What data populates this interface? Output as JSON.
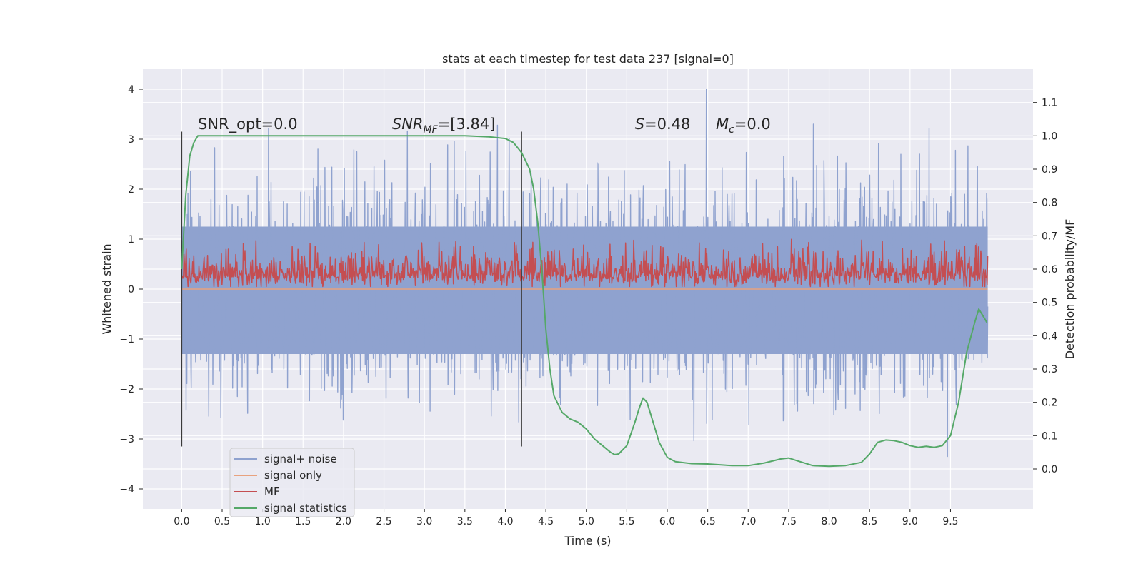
{
  "chart_data": {
    "type": "line",
    "title": "stats at each timestep for test data 237 [signal=0]",
    "xlabel": "Time (s)",
    "ylabel": "Whitened strain",
    "y2label": "Detection probability/MF",
    "xlim": [
      -0.48,
      10.52
    ],
    "ylim": [
      -4.4,
      4.4
    ],
    "y2lim": [
      -0.12,
      1.2
    ],
    "x_ticks": [
      0.0,
      0.5,
      1.0,
      1.5,
      2.0,
      2.5,
      3.0,
      3.5,
      4.0,
      4.5,
      5.0,
      5.5,
      6.0,
      6.5,
      7.0,
      7.5,
      8.0,
      8.5,
      9.0,
      9.5
    ],
    "x_tick_labels": [
      "0.0",
      "0.5",
      "1.0",
      "1.5",
      "2.0",
      "2.5",
      "3.0",
      "3.5",
      "4.0",
      "4.5",
      "5.0",
      "5.5",
      "6.0",
      "6.5",
      "7.0",
      "7.5",
      "8.0",
      "8.5",
      "9.0",
      "9.5"
    ],
    "y_ticks": [
      -4,
      -3,
      -2,
      -1,
      0,
      1,
      2,
      3,
      4
    ],
    "y_tick_labels": [
      "−4",
      "−3",
      "−2",
      "−1",
      "0",
      "1",
      "2",
      "3",
      "4"
    ],
    "y2_ticks": [
      0.0,
      0.1,
      0.2,
      0.3,
      0.4,
      0.5,
      0.6,
      0.7,
      0.8,
      0.9,
      1.0,
      1.1
    ],
    "y2_tick_labels": [
      "0.0",
      "0.1",
      "0.2",
      "0.3",
      "0.4",
      "0.5",
      "0.6",
      "0.7",
      "0.8",
      "0.9",
      "1.0",
      "1.1"
    ],
    "grid": true,
    "legend_position": "lower-left",
    "colors": {
      "signal_noise": "#8fa2cf",
      "signal_only": "#e8a27e",
      "mf": "#c44e52",
      "stat": "#55a868",
      "vline": "#3a3a3a",
      "background": "#eaeaf2",
      "grid": "#ffffff"
    },
    "series": [
      {
        "name": "signal+ noise",
        "axis": "left",
        "t_start": 0.0,
        "t_end": 9.96,
        "band_ymin": -1.3,
        "band_ymax": 1.25,
        "max_value": 4.0,
        "min_value": -4.05
      },
      {
        "name": "signal only",
        "axis": "left",
        "x": [
          0.0,
          9.96
        ],
        "y": [
          0.0,
          0.0
        ]
      },
      {
        "name": "MF",
        "axis": "left",
        "t_start": 0.0,
        "t_end": 9.96,
        "band_ymin": 0.05,
        "band_ymax": 1.0,
        "mean": 0.3
      },
      {
        "name": "signal statistics",
        "axis": "right",
        "x": [
          0.0,
          0.05,
          0.1,
          0.15,
          0.2,
          0.3,
          0.5,
          1.0,
          2.0,
          3.0,
          3.5,
          3.8,
          4.0,
          4.1,
          4.2,
          4.3,
          4.35,
          4.4,
          4.45,
          4.5,
          4.55,
          4.6,
          4.7,
          4.8,
          4.9,
          5.0,
          5.1,
          5.2,
          5.3,
          5.35,
          5.4,
          5.5,
          5.6,
          5.65,
          5.7,
          5.75,
          5.8,
          5.9,
          6.0,
          6.1,
          6.3,
          6.5,
          6.8,
          7.0,
          7.2,
          7.4,
          7.5,
          7.6,
          7.8,
          8.0,
          8.2,
          8.4,
          8.5,
          8.6,
          8.7,
          8.8,
          8.9,
          9.0,
          9.1,
          9.2,
          9.3,
          9.4,
          9.5,
          9.6,
          9.7,
          9.8,
          9.85,
          9.9,
          9.95
        ],
        "y": [
          0.6,
          0.82,
          0.94,
          0.98,
          1.0,
          1.0,
          1.0,
          1.0,
          1.0,
          1.0,
          1.0,
          0.997,
          0.992,
          0.98,
          0.95,
          0.9,
          0.84,
          0.74,
          0.6,
          0.42,
          0.3,
          0.22,
          0.17,
          0.15,
          0.14,
          0.12,
          0.09,
          0.07,
          0.05,
          0.043,
          0.045,
          0.07,
          0.14,
          0.18,
          0.213,
          0.2,
          0.16,
          0.08,
          0.035,
          0.022,
          0.016,
          0.015,
          0.01,
          0.01,
          0.018,
          0.03,
          0.033,
          0.025,
          0.01,
          0.008,
          0.01,
          0.02,
          0.045,
          0.08,
          0.087,
          0.085,
          0.08,
          0.07,
          0.065,
          0.068,
          0.065,
          0.07,
          0.1,
          0.2,
          0.35,
          0.44,
          0.48,
          0.46,
          0.44
        ]
      }
    ],
    "vlines": [
      0.0,
      4.2
    ],
    "vline_ymin": -3.15,
    "vline_ymax": 3.15,
    "annotations": [
      {
        "name": "snr-opt",
        "x": 0.2,
        "y": 3.2,
        "parts": [
          {
            "t": "SNR_opt=0.0"
          }
        ]
      },
      {
        "name": "snr-mf",
        "x": 2.6,
        "y": 3.2,
        "parts": [
          {
            "t": "SNR",
            "i": true
          },
          {
            "t": "MF",
            "i": true,
            "sub": true
          },
          {
            "t": "=[3.84]"
          }
        ]
      },
      {
        "name": "s-stat",
        "x": 5.6,
        "y": 3.2,
        "parts": [
          {
            "t": "S",
            "i": true
          },
          {
            "t": "=0.48"
          }
        ]
      },
      {
        "name": "mc",
        "x": 6.6,
        "y": 3.2,
        "parts": [
          {
            "t": "M",
            "i": true
          },
          {
            "t": "c",
            "i": true,
            "sub": true
          },
          {
            "t": "=0.0"
          }
        ]
      }
    ],
    "legend": [
      {
        "label": "signal+ noise",
        "color": "#8fa2cf"
      },
      {
        "label": "signal only",
        "color": "#e8a27e"
      },
      {
        "label": "MF",
        "color": "#c44e52"
      },
      {
        "label": "signal statistics",
        "color": "#55a868"
      }
    ]
  }
}
